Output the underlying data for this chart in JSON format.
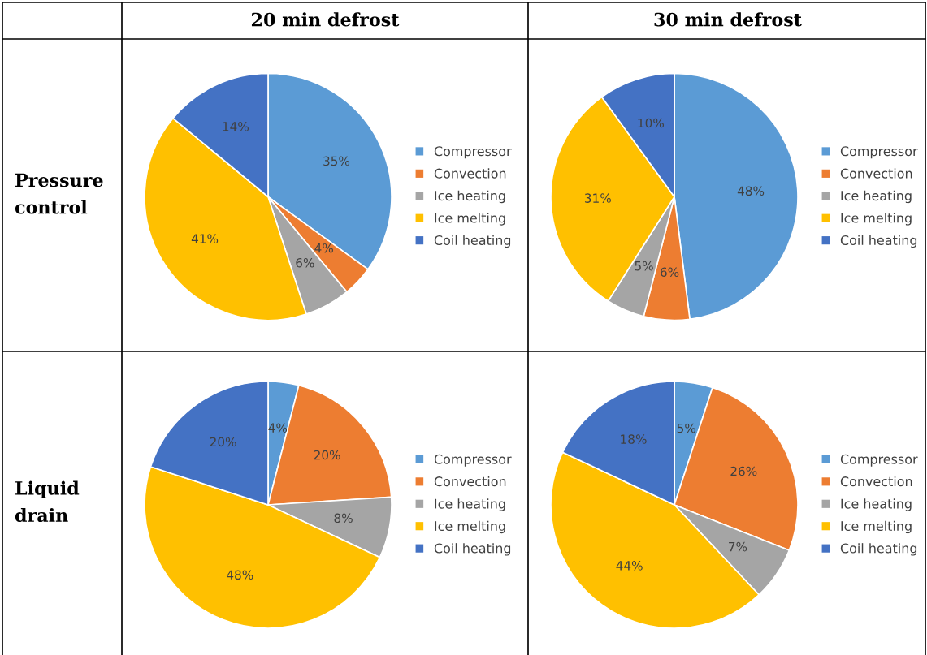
{
  "chart_data": [
    {
      "type": "pie",
      "title": "20 min defrost",
      "ylabel": "Pressure control",
      "categories": [
        "Compressor",
        "Convection",
        "Ice heating",
        "Ice melting",
        "Coil heating"
      ],
      "values": [
        35,
        4,
        6,
        41,
        14
      ],
      "value_labels": [
        "35%",
        "4%",
        "6%",
        "41%",
        "14%"
      ],
      "colors": [
        "#5b9bd5",
        "#ed7d31",
        "#a5a5a5",
        "#ffc000",
        "#4472c4"
      ],
      "legend": "right"
    },
    {
      "type": "pie",
      "title": "30 min defrost",
      "categories": [
        "Compressor",
        "Convection",
        "Ice heating",
        "Ice melting",
        "Coil heating"
      ],
      "values": [
        48,
        6,
        5,
        31,
        10
      ],
      "value_labels": [
        "48%",
        "6%",
        "5%",
        "31%",
        "10%"
      ],
      "colors": [
        "#5b9bd5",
        "#ed7d31",
        "#a5a5a5",
        "#ffc000",
        "#4472c4"
      ],
      "legend": "right"
    },
    {
      "type": "pie",
      "ylabel": "Liquid drain",
      "categories": [
        "Compressor",
        "Convection",
        "Ice heating",
        "Ice melting",
        "Coil heating"
      ],
      "values": [
        4,
        20,
        8,
        48,
        20
      ],
      "value_labels": [
        "4%",
        "20%",
        "8%",
        "48%",
        "20%"
      ],
      "colors": [
        "#5b9bd5",
        "#ed7d31",
        "#a5a5a5",
        "#ffc000",
        "#4472c4"
      ],
      "legend": "right"
    },
    {
      "type": "pie",
      "categories": [
        "Compressor",
        "Convection",
        "Ice heating",
        "Ice melting",
        "Coil heating"
      ],
      "values": [
        5,
        26,
        7,
        44,
        18
      ],
      "value_labels": [
        "5%",
        "26%",
        "7%",
        "44%",
        "18%"
      ],
      "colors": [
        "#5b9bd5",
        "#ed7d31",
        "#a5a5a5",
        "#ffc000",
        "#4472c4"
      ],
      "legend": "right"
    }
  ]
}
